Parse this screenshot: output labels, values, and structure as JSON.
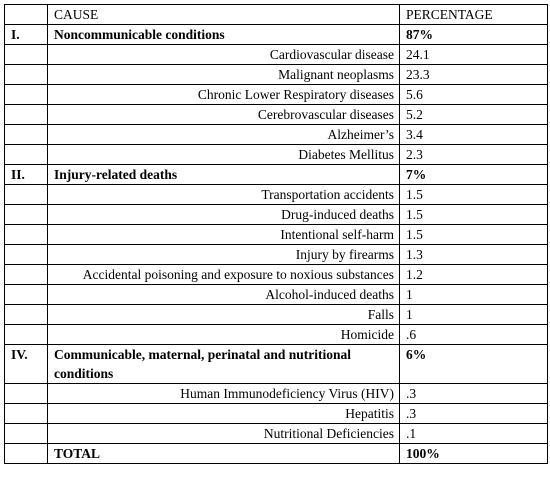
{
  "header": {
    "cause": "CAUSE",
    "percentage": "PERCENTAGE"
  },
  "sections": [
    {
      "number": "I.",
      "cause": "Noncommunicable conditions",
      "percentage": "87%",
      "items": [
        {
          "cause": "Cardiovascular disease",
          "percentage": "24.1"
        },
        {
          "cause": "Malignant neoplasms",
          "percentage": "23.3"
        },
        {
          "cause": "Chronic Lower Respiratory diseases",
          "percentage": "5.6"
        },
        {
          "cause": "Cerebrovascular diseases",
          "percentage": "5.2"
        },
        {
          "cause": "Alzheimer’s",
          "percentage": "3.4"
        },
        {
          "cause": "Diabetes Mellitus",
          "percentage": "2.3"
        }
      ]
    },
    {
      "number": "II.",
      "cause": "Injury-related deaths",
      "percentage": "7%",
      "items": [
        {
          "cause": "Transportation accidents",
          "percentage": "1.5"
        },
        {
          "cause": "Drug-induced deaths",
          "percentage": "1.5"
        },
        {
          "cause": "Intentional self-harm",
          "percentage": "1.5"
        },
        {
          "cause": "Injury by firearms",
          "percentage": "1.3"
        },
        {
          "cause": "Accidental poisoning and exposure to noxious substances",
          "percentage": "1.2"
        },
        {
          "cause": "Alcohol-induced deaths",
          "percentage": "1"
        },
        {
          "cause": "Falls",
          "percentage": "1"
        },
        {
          "cause": "Homicide",
          "percentage": ".6"
        }
      ]
    },
    {
      "number": "IV.",
      "cause": "Communicable, maternal, perinatal and nutritional conditions",
      "percentage": "6%",
      "items": [
        {
          "cause": "Human Immunodeficiency Virus (HIV)",
          "percentage": ".3"
        },
        {
          "cause": "Hepatitis",
          "percentage": ".3"
        },
        {
          "cause": "Nutritional Deficiencies",
          "percentage": ".1"
        }
      ]
    }
  ],
  "total": {
    "label": "TOTAL",
    "percentage": "100%"
  }
}
